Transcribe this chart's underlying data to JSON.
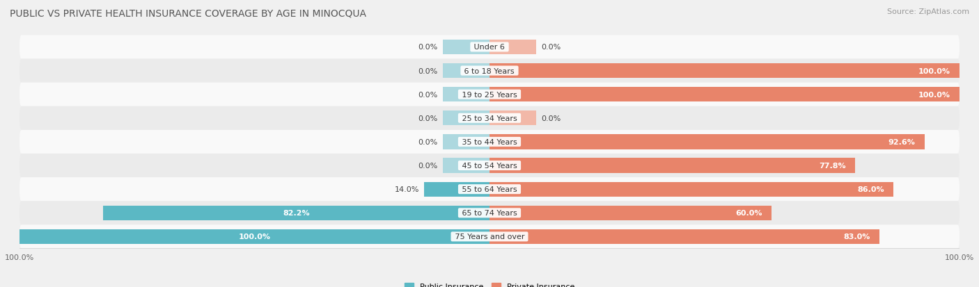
{
  "title": "Public vs Private Health Insurance Coverage by Age in Minocqua",
  "source": "Source: ZipAtlas.com",
  "categories": [
    "Under 6",
    "6 to 18 Years",
    "19 to 25 Years",
    "25 to 34 Years",
    "35 to 44 Years",
    "45 to 54 Years",
    "55 to 64 Years",
    "65 to 74 Years",
    "75 Years and over"
  ],
  "public_values": [
    0.0,
    0.0,
    0.0,
    0.0,
    0.0,
    0.0,
    14.0,
    82.2,
    100.0
  ],
  "private_values": [
    0.0,
    100.0,
    100.0,
    0.0,
    92.6,
    77.8,
    86.0,
    60.0,
    83.0
  ],
  "public_color": "#5BB8C4",
  "public_color_faint": "#ADD8DF",
  "private_color": "#E8846A",
  "private_color_faint": "#F2B8A8",
  "public_label": "Public Insurance",
  "private_label": "Private Insurance",
  "bar_height": 0.62,
  "background_color": "#f0f0f0",
  "row_bg_light": "#f9f9f9",
  "row_bg_dark": "#ebebeb",
  "xlim_left": -100,
  "xlim_right": 100,
  "stub_value": 10,
  "title_fontsize": 10,
  "source_fontsize": 8,
  "label_fontsize": 8,
  "value_fontsize": 8,
  "tick_fontsize": 8
}
